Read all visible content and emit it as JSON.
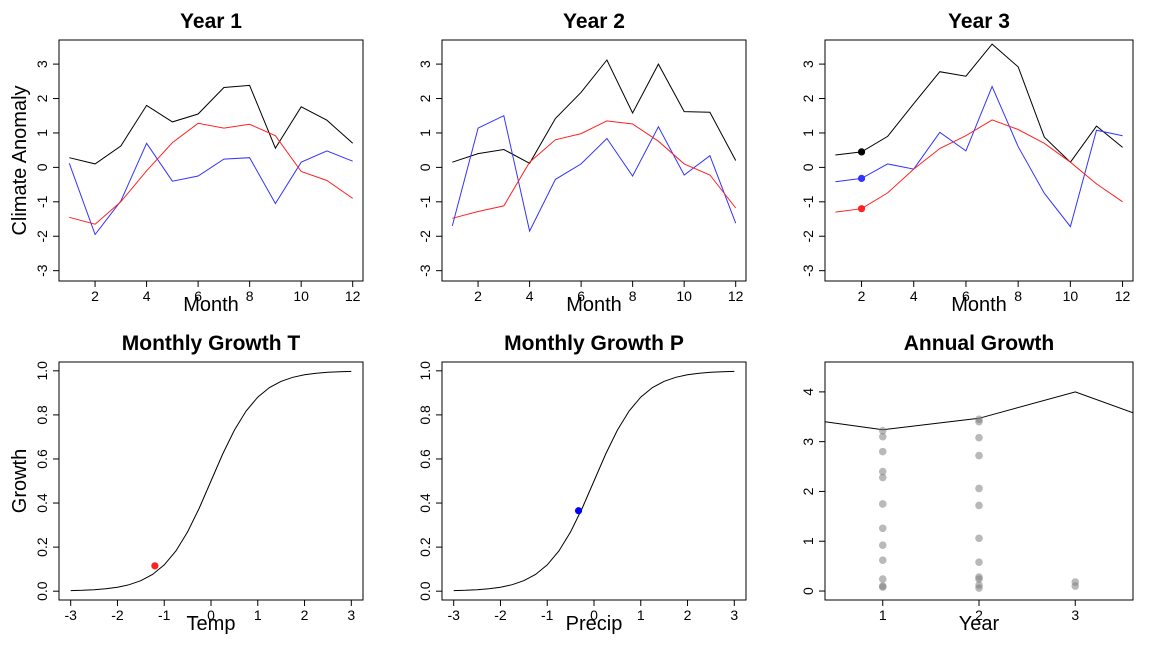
{
  "colors": {
    "black": "#000000",
    "blue": "#3333ff",
    "red": "#ff2222",
    "grey": "#808080"
  },
  "chart_data": [
    {
      "type": "line",
      "title": "Year 1",
      "xlabel": "Month",
      "ylabel": "Climate Anomaly",
      "xlim": [
        0.6,
        12.4
      ],
      "ylim": [
        -3.3,
        3.7
      ],
      "xticks": [
        2,
        4,
        6,
        8,
        10,
        12
      ],
      "yticks": [
        -3,
        -2,
        -1,
        0,
        1,
        2,
        3
      ],
      "x": [
        1,
        2,
        3,
        4,
        5,
        6,
        7,
        8,
        9,
        10,
        11,
        12
      ],
      "series": [
        {
          "color": "#000000",
          "values": [
            0.28,
            0.1,
            0.62,
            1.8,
            1.32,
            1.55,
            2.32,
            2.38,
            0.56,
            1.76,
            1.37,
            0.7
          ]
        },
        {
          "color": "#3333ff",
          "values": [
            0.12,
            -1.95,
            -0.98,
            0.7,
            -0.4,
            -0.25,
            0.24,
            0.28,
            -1.05,
            0.15,
            0.48,
            0.18
          ]
        },
        {
          "color": "#ff2222",
          "values": [
            -1.45,
            -1.65,
            -1.0,
            -0.1,
            0.72,
            1.28,
            1.14,
            1.25,
            0.92,
            -0.12,
            -0.38,
            -0.9
          ]
        }
      ],
      "points": []
    },
    {
      "type": "line",
      "title": "Year 2",
      "xlabel": "Month",
      "ylabel": "",
      "xlim": [
        0.6,
        12.4
      ],
      "ylim": [
        -3.3,
        3.7
      ],
      "xticks": [
        2,
        4,
        6,
        8,
        10,
        12
      ],
      "yticks": [
        -3,
        -2,
        -1,
        0,
        1,
        2,
        3
      ],
      "x": [
        1,
        2,
        3,
        4,
        5,
        6,
        7,
        8,
        9,
        10,
        11,
        12
      ],
      "series": [
        {
          "color": "#000000",
          "values": [
            0.15,
            0.4,
            0.52,
            0.12,
            1.42,
            2.18,
            3.12,
            1.58,
            3.0,
            1.62,
            1.6,
            0.2
          ]
        },
        {
          "color": "#3333ff",
          "values": [
            -1.7,
            1.14,
            1.5,
            -1.85,
            -0.35,
            0.1,
            0.84,
            -0.25,
            1.18,
            -0.22,
            0.34,
            -1.62
          ]
        },
        {
          "color": "#ff2222",
          "values": [
            -1.48,
            -1.28,
            -1.12,
            0.15,
            0.8,
            0.98,
            1.35,
            1.26,
            0.76,
            0.1,
            -0.22,
            -1.18
          ]
        }
      ],
      "points": []
    },
    {
      "type": "line",
      "title": "Year 3",
      "xlabel": "Month",
      "ylabel": "",
      "xlim": [
        0.6,
        12.4
      ],
      "ylim": [
        -3.3,
        3.7
      ],
      "xticks": [
        2,
        4,
        6,
        8,
        10,
        12
      ],
      "yticks": [
        -3,
        -2,
        -1,
        0,
        1,
        2,
        3
      ],
      "x": [
        1,
        2,
        3,
        4,
        5,
        6,
        7,
        8,
        9,
        10,
        11,
        12
      ],
      "series": [
        {
          "color": "#000000",
          "values": [
            0.36,
            0.45,
            0.9,
            1.85,
            2.78,
            2.65,
            3.58,
            2.92,
            0.88,
            0.15,
            1.2,
            0.58
          ]
        },
        {
          "color": "#3333ff",
          "values": [
            -0.42,
            -0.32,
            0.1,
            -0.05,
            1.02,
            0.48,
            2.35,
            0.6,
            -0.75,
            -1.72,
            1.08,
            0.92
          ]
        },
        {
          "color": "#ff2222",
          "values": [
            -1.3,
            -1.2,
            -0.74,
            -0.05,
            0.55,
            0.92,
            1.38,
            1.1,
            0.7,
            0.15,
            -0.48,
            -1.0
          ]
        }
      ],
      "points": [
        {
          "x": 2,
          "y": 0.45,
          "color": "#000000"
        },
        {
          "x": 2,
          "y": -0.32,
          "color": "#3333ff"
        },
        {
          "x": 2,
          "y": -1.2,
          "color": "#ff2222"
        }
      ]
    },
    {
      "type": "line",
      "title": "Monthly Growth T",
      "xlabel": "Temp",
      "ylabel": "Growth",
      "xlim": [
        -3.25,
        3.25
      ],
      "ylim": [
        -0.04,
        1.04
      ],
      "xticks": [
        -3,
        -2,
        -1,
        0,
        1,
        2,
        3
      ],
      "yticks": [
        0.0,
        0.2,
        0.4,
        0.6,
        0.8,
        1.0
      ],
      "ytick_labels": [
        "0.0",
        "0.2",
        "0.4",
        "0.6",
        "0.8",
        "1.0"
      ],
      "x": [
        -3.0,
        -2.75,
        -2.5,
        -2.25,
        -2.0,
        -1.75,
        -1.5,
        -1.25,
        -1.0,
        -0.75,
        -0.5,
        -0.25,
        0.0,
        0.25,
        0.5,
        0.75,
        1.0,
        1.25,
        1.5,
        1.75,
        2.0,
        2.25,
        2.5,
        2.75,
        3.0
      ],
      "series": [
        {
          "color": "#000000",
          "values": [
            0.0025,
            0.0041,
            0.0067,
            0.011,
            0.018,
            0.0293,
            0.0474,
            0.0759,
            0.1192,
            0.1824,
            0.2689,
            0.3775,
            0.5,
            0.6225,
            0.7311,
            0.8176,
            0.8808,
            0.9241,
            0.9526,
            0.9707,
            0.982,
            0.989,
            0.9933,
            0.9959,
            0.9975
          ]
        }
      ],
      "points": [
        {
          "x": -1.2,
          "y": 0.115,
          "color": "#ff2222"
        }
      ]
    },
    {
      "type": "line",
      "title": "Monthly Growth P",
      "xlabel": "Precip",
      "ylabel": "",
      "xlim": [
        -3.25,
        3.25
      ],
      "ylim": [
        -0.04,
        1.04
      ],
      "xticks": [
        -3,
        -2,
        -1,
        0,
        1,
        2,
        3
      ],
      "yticks": [
        0.0,
        0.2,
        0.4,
        0.6,
        0.8,
        1.0
      ],
      "ytick_labels": [
        "0.0",
        "0.2",
        "0.4",
        "0.6",
        "0.8",
        "1.0"
      ],
      "x": [
        -3.0,
        -2.75,
        -2.5,
        -2.25,
        -2.0,
        -1.75,
        -1.5,
        -1.25,
        -1.0,
        -0.75,
        -0.5,
        -0.25,
        0.0,
        0.25,
        0.5,
        0.75,
        1.0,
        1.25,
        1.5,
        1.75,
        2.0,
        2.25,
        2.5,
        2.75,
        3.0
      ],
      "series": [
        {
          "color": "#000000",
          "values": [
            0.0025,
            0.0041,
            0.0067,
            0.011,
            0.018,
            0.0293,
            0.0474,
            0.0759,
            0.1192,
            0.1824,
            0.2689,
            0.3775,
            0.5,
            0.6225,
            0.7311,
            0.8176,
            0.8808,
            0.9241,
            0.9526,
            0.9707,
            0.982,
            0.989,
            0.9933,
            0.9959,
            0.9975
          ]
        }
      ],
      "points": [
        {
          "x": -0.33,
          "y": 0.365,
          "color": "#0000ff"
        }
      ]
    },
    {
      "type": "scatter",
      "title": "Annual Growth",
      "xlabel": "Year",
      "ylabel": "",
      "xlim": [
        0.4,
        3.6
      ],
      "ylim": [
        -0.18,
        4.6
      ],
      "xticks": [
        1,
        2,
        3
      ],
      "yticks": [
        0,
        1,
        2,
        3,
        4
      ],
      "x": [
        0.4,
        1,
        2,
        3,
        3.6
      ],
      "series": [
        {
          "color": "#000000",
          "values": [
            3.4,
            3.24,
            3.47,
            4.0,
            3.58
          ]
        }
      ],
      "points": [
        {
          "x": 1,
          "y": 3.22,
          "color": "#808080"
        },
        {
          "x": 1,
          "y": 3.1,
          "color": "#808080"
        },
        {
          "x": 1,
          "y": 2.8,
          "color": "#808080"
        },
        {
          "x": 1,
          "y": 2.4,
          "color": "#808080"
        },
        {
          "x": 1,
          "y": 2.28,
          "color": "#808080"
        },
        {
          "x": 1,
          "y": 1.75,
          "color": "#808080"
        },
        {
          "x": 1,
          "y": 1.26,
          "color": "#808080"
        },
        {
          "x": 1,
          "y": 0.92,
          "color": "#808080"
        },
        {
          "x": 1,
          "y": 0.62,
          "color": "#808080"
        },
        {
          "x": 1,
          "y": 0.24,
          "color": "#808080"
        },
        {
          "x": 1,
          "y": 0.1,
          "color": "#808080"
        },
        {
          "x": 1,
          "y": 0.08,
          "color": "#808080"
        },
        {
          "x": 2,
          "y": 3.45,
          "color": "#808080"
        },
        {
          "x": 2,
          "y": 3.4,
          "color": "#808080"
        },
        {
          "x": 2,
          "y": 3.08,
          "color": "#808080"
        },
        {
          "x": 2,
          "y": 2.72,
          "color": "#808080"
        },
        {
          "x": 2,
          "y": 2.06,
          "color": "#808080"
        },
        {
          "x": 2,
          "y": 1.72,
          "color": "#808080"
        },
        {
          "x": 2,
          "y": 1.06,
          "color": "#808080"
        },
        {
          "x": 2,
          "y": 0.58,
          "color": "#808080"
        },
        {
          "x": 2,
          "y": 0.28,
          "color": "#808080"
        },
        {
          "x": 2,
          "y": 0.24,
          "color": "#808080"
        },
        {
          "x": 2,
          "y": 0.12,
          "color": "#808080"
        },
        {
          "x": 2,
          "y": 0.06,
          "color": "#808080"
        },
        {
          "x": 3,
          "y": 0.18,
          "color": "#808080"
        },
        {
          "x": 3,
          "y": 0.1,
          "color": "#808080"
        }
      ]
    }
  ]
}
